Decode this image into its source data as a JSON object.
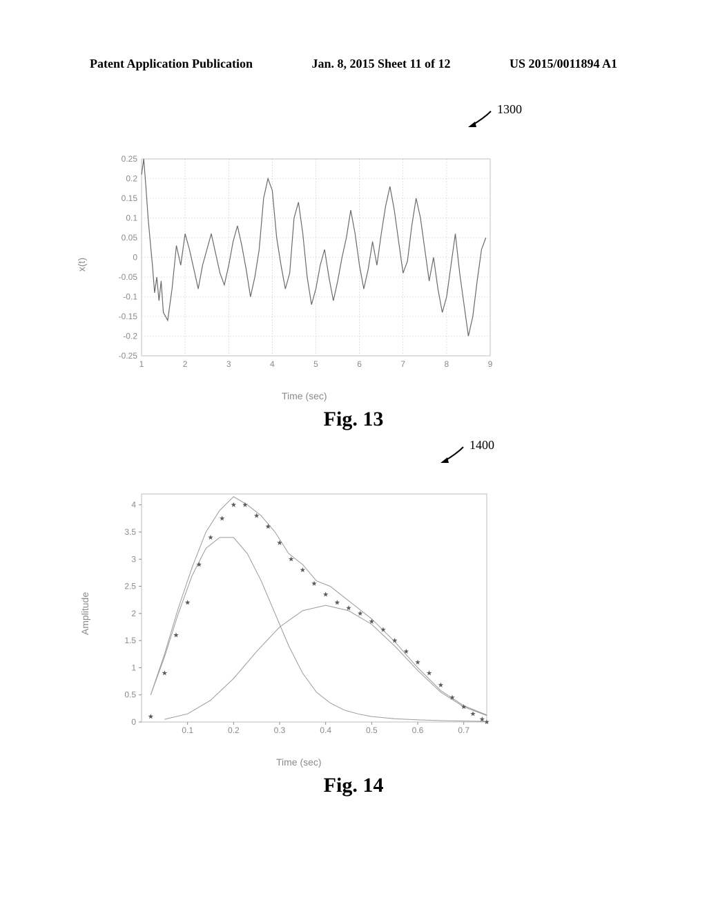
{
  "header": {
    "left": "Patent Application Publication",
    "center": "Jan. 8, 2015  Sheet 11 of 12",
    "right": "US 2015/0011894 A1"
  },
  "fig13": {
    "ref_number": "1300",
    "caption": "Fig. 13",
    "chart": {
      "type": "line",
      "xlabel": "Time (sec)",
      "ylabel": "x(t)",
      "xlim": [
        1,
        9
      ],
      "ylim": [
        -0.25,
        0.25
      ],
      "xticks": [
        1,
        2,
        3,
        4,
        5,
        6,
        7,
        8,
        9
      ],
      "yticks": [
        -0.25,
        -0.2,
        -0.15,
        -0.1,
        -0.05,
        0,
        0.05,
        0.1,
        0.15,
        0.2,
        0.25
      ],
      "grid_color": "#cccccc",
      "line_color": "#6a6a6a",
      "line_width": 1.2,
      "background_color": "#ffffff",
      "border_color": "#bdbdbd",
      "data": {
        "x": [
          1.0,
          1.05,
          1.1,
          1.15,
          1.2,
          1.25,
          1.3,
          1.35,
          1.4,
          1.45,
          1.5,
          1.6,
          1.7,
          1.8,
          1.9,
          2.0,
          2.1,
          2.2,
          2.3,
          2.4,
          2.5,
          2.6,
          2.7,
          2.8,
          2.9,
          3.0,
          3.1,
          3.2,
          3.3,
          3.4,
          3.5,
          3.6,
          3.7,
          3.8,
          3.9,
          4.0,
          4.1,
          4.2,
          4.3,
          4.4,
          4.5,
          4.6,
          4.7,
          4.8,
          4.9,
          5.0,
          5.1,
          5.2,
          5.3,
          5.4,
          5.5,
          5.6,
          5.7,
          5.8,
          5.9,
          6.0,
          6.1,
          6.2,
          6.3,
          6.4,
          6.5,
          6.6,
          6.7,
          6.8,
          6.9,
          7.0,
          7.1,
          7.2,
          7.3,
          7.4,
          7.5,
          7.6,
          7.7,
          7.8,
          7.9,
          8.0,
          8.1,
          8.2,
          8.3,
          8.4,
          8.5,
          8.6,
          8.7,
          8.8,
          8.9
        ],
        "y": [
          0.21,
          0.25,
          0.18,
          0.1,
          0.04,
          -0.02,
          -0.09,
          -0.05,
          -0.11,
          -0.06,
          -0.14,
          -0.16,
          -0.08,
          0.03,
          -0.02,
          0.06,
          0.02,
          -0.03,
          -0.08,
          -0.02,
          0.02,
          0.06,
          0.01,
          -0.04,
          -0.07,
          -0.02,
          0.04,
          0.08,
          0.03,
          -0.03,
          -0.1,
          -0.05,
          0.02,
          0.15,
          0.2,
          0.17,
          0.05,
          -0.02,
          -0.08,
          -0.04,
          0.1,
          0.14,
          0.06,
          -0.05,
          -0.12,
          -0.08,
          -0.02,
          0.02,
          -0.05,
          -0.11,
          -0.06,
          0.0,
          0.05,
          0.12,
          0.06,
          -0.02,
          -0.08,
          -0.03,
          0.04,
          -0.02,
          0.06,
          0.13,
          0.18,
          0.12,
          0.04,
          -0.04,
          -0.01,
          0.08,
          0.15,
          0.1,
          0.02,
          -0.06,
          0.0,
          -0.08,
          -0.14,
          -0.1,
          -0.02,
          0.06,
          -0.04,
          -0.12,
          -0.2,
          -0.15,
          -0.06,
          0.02,
          0.05
        ]
      }
    }
  },
  "fig14": {
    "ref_number": "1400",
    "caption": "Fig. 14",
    "chart": {
      "type": "line+scatter",
      "xlabel": "Time (sec)",
      "ylabel": "Amplitude",
      "xlim": [
        0,
        0.75
      ],
      "ylim": [
        0,
        4.2
      ],
      "xticks": [
        0.1,
        0.2,
        0.3,
        0.4,
        0.5,
        0.6,
        0.7
      ],
      "yticks": [
        0,
        0.5,
        1,
        1.5,
        2,
        2.5,
        3,
        3.5,
        4
      ],
      "grid_color": "#cccccc",
      "background_color": "#ffffff",
      "border_color": "#bdbdbd",
      "line_color": "#9a9a9a",
      "line_width": 1.0,
      "marker_color": "#5a5a5a",
      "marker_style": "star",
      "marker_size": 4,
      "curve1": {
        "x": [
          0.02,
          0.05,
          0.08,
          0.11,
          0.14,
          0.17,
          0.2,
          0.23,
          0.26,
          0.29,
          0.32,
          0.35,
          0.38,
          0.41,
          0.44,
          0.47,
          0.5,
          0.55,
          0.6,
          0.65,
          0.7,
          0.75
        ],
        "y": [
          0.5,
          1.2,
          2.0,
          2.7,
          3.2,
          3.4,
          3.4,
          3.1,
          2.6,
          2.0,
          1.4,
          0.9,
          0.55,
          0.35,
          0.22,
          0.15,
          0.1,
          0.06,
          0.04,
          0.025,
          0.018,
          0.012
        ]
      },
      "curve2": {
        "x": [
          0.05,
          0.1,
          0.15,
          0.2,
          0.25,
          0.3,
          0.35,
          0.4,
          0.45,
          0.5,
          0.55,
          0.6,
          0.65,
          0.7,
          0.75
        ],
        "y": [
          0.05,
          0.15,
          0.4,
          0.8,
          1.3,
          1.75,
          2.05,
          2.15,
          2.05,
          1.8,
          1.4,
          0.95,
          0.55,
          0.28,
          0.12
        ]
      },
      "sum_curve": {
        "x": [
          0.02,
          0.05,
          0.08,
          0.11,
          0.14,
          0.17,
          0.2,
          0.23,
          0.26,
          0.29,
          0.32,
          0.35,
          0.38,
          0.41,
          0.44,
          0.47,
          0.5,
          0.55,
          0.6,
          0.65,
          0.7,
          0.75
        ],
        "y": [
          0.5,
          1.25,
          2.1,
          2.85,
          3.5,
          3.9,
          4.15,
          4.0,
          3.8,
          3.5,
          3.1,
          2.9,
          2.6,
          2.5,
          2.3,
          2.1,
          1.9,
          1.48,
          1.0,
          0.58,
          0.3,
          0.13
        ]
      },
      "scatter": {
        "x": [
          0.02,
          0.05,
          0.075,
          0.1,
          0.125,
          0.15,
          0.175,
          0.2,
          0.225,
          0.25,
          0.275,
          0.3,
          0.325,
          0.35,
          0.375,
          0.4,
          0.425,
          0.45,
          0.475,
          0.5,
          0.525,
          0.55,
          0.575,
          0.6,
          0.625,
          0.65,
          0.675,
          0.7,
          0.72,
          0.74,
          0.75
        ],
        "y": [
          0.1,
          0.9,
          1.6,
          2.2,
          2.9,
          3.4,
          3.75,
          4.0,
          4.0,
          3.8,
          3.6,
          3.3,
          3.0,
          2.8,
          2.55,
          2.35,
          2.2,
          2.1,
          2.0,
          1.85,
          1.7,
          1.5,
          1.3,
          1.1,
          0.9,
          0.68,
          0.45,
          0.28,
          0.15,
          0.05,
          0.0
        ]
      }
    }
  }
}
